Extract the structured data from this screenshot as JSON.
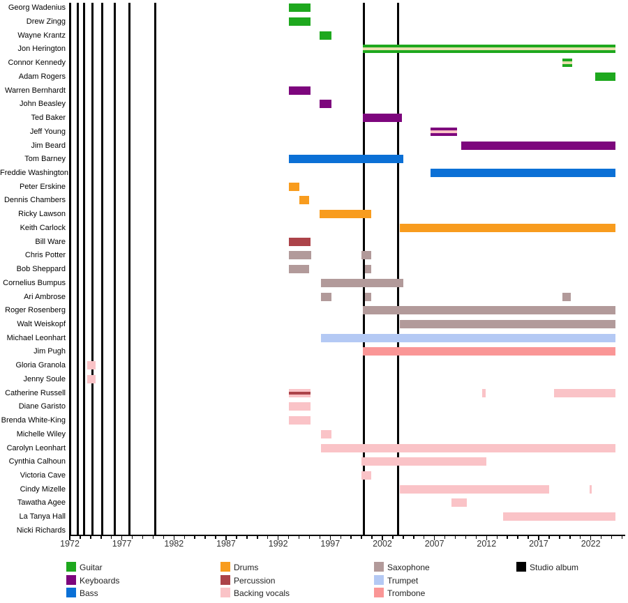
{
  "chart_data": {
    "type": "timeline",
    "title": "",
    "x_axis": {
      "min": 1972,
      "max": 2025.3,
      "minor_tick_interval_years": 1,
      "labeled_ticks": [
        1972,
        1977,
        1982,
        1987,
        1992,
        1997,
        2002,
        2007,
        2012,
        2017,
        2022
      ]
    },
    "role_colors": {
      "guitar": "#1EA81E",
      "keyboards": "#7D067D",
      "bass": "#0B70D6",
      "drums": "#F89C1E",
      "percussion": "#AC4349",
      "backing_vocals": "#FAC3C7",
      "saxophone": "#B29A9A",
      "trumpet": "#B4C9F4",
      "trombone": "#FA9696",
      "studio_album": "#000000",
      "wheat": "#E8DFAE"
    },
    "legend_columns": [
      [
        {
          "label": "Guitar",
          "role": "guitar"
        },
        {
          "label": "Keyboards",
          "role": "keyboards"
        },
        {
          "label": "Bass",
          "role": "bass"
        }
      ],
      [
        {
          "label": "Drums",
          "role": "drums"
        },
        {
          "label": "Percussion",
          "role": "percussion"
        },
        {
          "label": "Backing vocals",
          "role": "backing_vocals"
        }
      ],
      [
        {
          "label": "Saxophone",
          "role": "saxophone"
        },
        {
          "label": "Trumpet",
          "role": "trumpet"
        },
        {
          "label": "Trombone",
          "role": "trombone"
        }
      ],
      [
        {
          "label": "Studio album",
          "role": "studio_album"
        }
      ]
    ],
    "album_years": [
      1972.8,
      1973.4,
      1974.2,
      1975.1,
      1976.3,
      1977.7,
      1980.2,
      2000.2,
      2003.5
    ],
    "members": [
      {
        "name": "Georg Wadenius",
        "bars": [
          {
            "from": 1993.0,
            "to": 1995.1,
            "role": "guitar"
          }
        ]
      },
      {
        "name": "Drew Zingg",
        "bars": [
          {
            "from": 1993.0,
            "to": 1995.1,
            "role": "guitar"
          }
        ]
      },
      {
        "name": "Wayne Krantz",
        "bars": [
          {
            "from": 1996.0,
            "to": 1997.1,
            "role": "guitar"
          }
        ]
      },
      {
        "name": "Jon Herington",
        "bars": [
          {
            "from": 2000.1,
            "to": 2024.4,
            "role": "guitar",
            "stripe": "wheat"
          }
        ]
      },
      {
        "name": "Connor Kennedy",
        "bars": [
          {
            "from": 2019.3,
            "to": 2020.2,
            "role": "guitar",
            "stripe": "wheat"
          }
        ]
      },
      {
        "name": "Adam Rogers",
        "bars": [
          {
            "from": 2022.4,
            "to": 2024.4,
            "role": "guitar"
          }
        ]
      },
      {
        "name": "Warren Bernhardt",
        "bars": [
          {
            "from": 1993.0,
            "to": 1995.1,
            "role": "keyboards"
          }
        ]
      },
      {
        "name": "John Beasley",
        "bars": [
          {
            "from": 1996.0,
            "to": 1997.1,
            "role": "keyboards"
          }
        ]
      },
      {
        "name": "Ted Baker",
        "bars": [
          {
            "from": 2000.1,
            "to": 2003.9,
            "role": "keyboards"
          }
        ]
      },
      {
        "name": "Jeff Young",
        "bars": [
          {
            "from": 2006.6,
            "to": 2009.2,
            "role": "keyboards",
            "stripe": "backing_vocals"
          }
        ]
      },
      {
        "name": "Jim Beard",
        "bars": [
          {
            "from": 2009.6,
            "to": 2024.4,
            "role": "keyboards"
          }
        ]
      },
      {
        "name": "Tom Barney",
        "bars": [
          {
            "from": 1993.0,
            "to": 2004.0,
            "role": "bass"
          }
        ]
      },
      {
        "name": "Freddie Washington",
        "bars": [
          {
            "from": 2006.6,
            "to": 2024.4,
            "role": "bass"
          }
        ]
      },
      {
        "name": "Peter Erskine",
        "bars": [
          {
            "from": 1993.0,
            "to": 1994.0,
            "role": "drums"
          }
        ]
      },
      {
        "name": "Dennis Chambers",
        "bars": [
          {
            "from": 1994.0,
            "to": 1995.0,
            "role": "drums"
          }
        ]
      },
      {
        "name": "Ricky Lawson",
        "bars": [
          {
            "from": 1996.0,
            "to": 2000.9,
            "role": "drums"
          }
        ]
      },
      {
        "name": "Keith Carlock",
        "bars": [
          {
            "from": 2003.7,
            "to": 2024.4,
            "role": "drums"
          }
        ]
      },
      {
        "name": "Bill Ware",
        "bars": [
          {
            "from": 1993.0,
            "to": 1995.1,
            "role": "percussion"
          }
        ]
      },
      {
        "name": "Chris Potter",
        "bars": [
          {
            "from": 1993.0,
            "to": 1995.2,
            "role": "saxophone"
          },
          {
            "from": 2000.0,
            "to": 2000.9,
            "role": "saxophone"
          }
        ]
      },
      {
        "name": "Bob Sheppard",
        "bars": [
          {
            "from": 1993.0,
            "to": 1995.0,
            "role": "saxophone"
          },
          {
            "from": 2000.3,
            "to": 2000.9,
            "role": "saxophone"
          }
        ]
      },
      {
        "name": "Cornelius Bumpus",
        "bars": [
          {
            "from": 1996.1,
            "to": 2004.0,
            "role": "saxophone"
          }
        ]
      },
      {
        "name": "Ari Ambrose",
        "bars": [
          {
            "from": 1996.1,
            "to": 1997.1,
            "role": "saxophone"
          },
          {
            "from": 2000.3,
            "to": 2000.9,
            "role": "saxophone"
          },
          {
            "from": 2019.3,
            "to": 2020.1,
            "role": "saxophone"
          }
        ]
      },
      {
        "name": "Roger Rosenberg",
        "bars": [
          {
            "from": 2000.1,
            "to": 2024.4,
            "role": "saxophone"
          }
        ]
      },
      {
        "name": "Walt Weiskopf",
        "bars": [
          {
            "from": 2003.7,
            "to": 2024.4,
            "role": "saxophone"
          }
        ]
      },
      {
        "name": "Michael Leonhart",
        "bars": [
          {
            "from": 1996.1,
            "to": 2024.4,
            "role": "trumpet"
          }
        ]
      },
      {
        "name": "Jim Pugh",
        "bars": [
          {
            "from": 2000.1,
            "to": 2024.4,
            "role": "trombone"
          }
        ]
      },
      {
        "name": "Gloria Granola",
        "bars": [
          {
            "from": 1973.7,
            "to": 1974.5,
            "role": "backing_vocals"
          }
        ]
      },
      {
        "name": "Jenny Soule",
        "bars": [
          {
            "from": 1973.7,
            "to": 1974.5,
            "role": "backing_vocals"
          }
        ]
      },
      {
        "name": "Catherine Russell",
        "bars": [
          {
            "from": 1993.0,
            "to": 1995.1,
            "role": "backing_vocals",
            "stripe": "percussion"
          },
          {
            "from": 2011.6,
            "to": 2011.9,
            "role": "backing_vocals"
          },
          {
            "from": 2018.5,
            "to": 2024.4,
            "role": "backing_vocals"
          }
        ]
      },
      {
        "name": "Diane Garisto",
        "bars": [
          {
            "from": 1993.0,
            "to": 1995.1,
            "role": "backing_vocals"
          }
        ]
      },
      {
        "name": "Brenda White-King",
        "bars": [
          {
            "from": 1993.0,
            "to": 1995.1,
            "role": "backing_vocals"
          }
        ]
      },
      {
        "name": "Michelle Wiley",
        "bars": [
          {
            "from": 1996.1,
            "to": 1997.1,
            "role": "backing_vocals"
          }
        ]
      },
      {
        "name": "Carolyn Leonhart",
        "bars": [
          {
            "from": 1996.1,
            "to": 2024.4,
            "role": "backing_vocals"
          }
        ]
      },
      {
        "name": "Cynthia Calhoun",
        "bars": [
          {
            "from": 2000.0,
            "to": 2012.0,
            "role": "backing_vocals"
          }
        ]
      },
      {
        "name": "Victoria Cave",
        "bars": [
          {
            "from": 2000.0,
            "to": 2000.9,
            "role": "backing_vocals"
          }
        ]
      },
      {
        "name": "Cindy Mizelle",
        "bars": [
          {
            "from": 2003.7,
            "to": 2018.0,
            "role": "backing_vocals"
          },
          {
            "from": 2021.9,
            "to": 2022.1,
            "role": "backing_vocals"
          }
        ]
      },
      {
        "name": "Tawatha Agee",
        "bars": [
          {
            "from": 2008.6,
            "to": 2010.1,
            "role": "backing_vocals"
          }
        ]
      },
      {
        "name": "La Tanya Hall",
        "bars": [
          {
            "from": 2013.6,
            "to": 2024.4,
            "role": "backing_vocals"
          }
        ]
      },
      {
        "name": "Nicki Richards",
        "bars": []
      }
    ]
  }
}
